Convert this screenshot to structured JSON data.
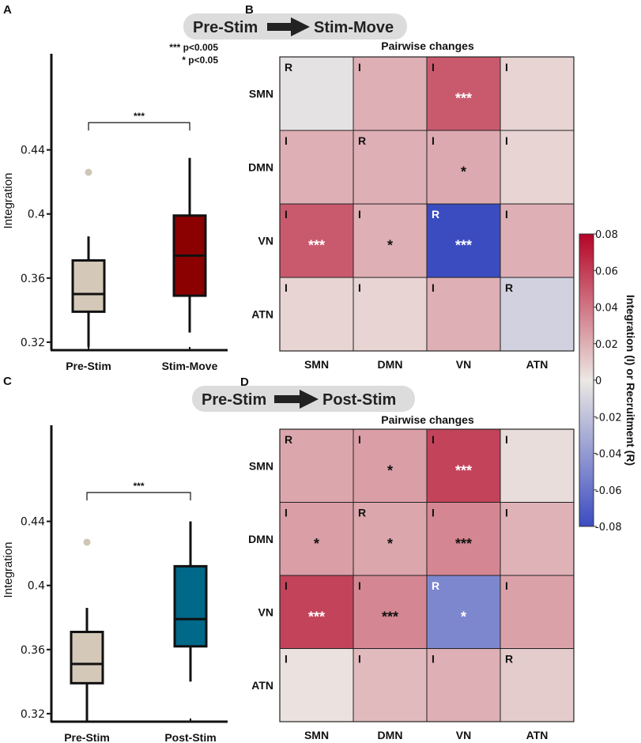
{
  "chart_data": [
    {
      "type": "box",
      "panel": "A",
      "ylabel": "Integration",
      "ylim": [
        0.315,
        0.5
      ],
      "yticks": [
        0.32,
        0.36,
        0.4,
        0.44
      ],
      "ytick_labels": [
        "0.32",
        "0.36",
        "0.4",
        "0.44"
      ],
      "categories": [
        "Pre-Stim",
        "Stim-Move"
      ],
      "boxes": [
        {
          "name": "Pre-Stim",
          "whisker_low": 0.317,
          "q1": 0.339,
          "median": 0.35,
          "q3": 0.371,
          "whisker_high": 0.386,
          "outliers": [
            0.426
          ],
          "color": "#d4c8b8"
        },
        {
          "name": "Stim-Move",
          "whisker_low": 0.326,
          "q1": 0.349,
          "median": 0.374,
          "q3": 0.399,
          "whisker_high": 0.435,
          "outliers": [],
          "color": "#8b0000"
        }
      ],
      "significance": {
        "label": "***",
        "level": 0.457
      },
      "legend": [
        "*** p<0.005",
        "* p<0.05"
      ]
    },
    {
      "type": "box",
      "panel": "C",
      "ylabel": "Integration",
      "ylim": [
        0.315,
        0.5
      ],
      "yticks": [
        0.32,
        0.36,
        0.4,
        0.44
      ],
      "ytick_labels": [
        "0.32",
        "0.36",
        "0.4",
        "0.44"
      ],
      "categories": [
        "Pre-Stim",
        "Post-Stim"
      ],
      "boxes": [
        {
          "name": "Pre-Stim",
          "whisker_low": 0.315,
          "q1": 0.339,
          "median": 0.351,
          "q3": 0.371,
          "whisker_high": 0.386,
          "outliers": [
            0.427
          ],
          "color": "#d4c8b8"
        },
        {
          "name": "Post-Stim",
          "whisker_low": 0.34,
          "q1": 0.362,
          "median": 0.379,
          "q3": 0.412,
          "whisker_high": 0.44,
          "outliers": [],
          "color": "#006888"
        }
      ],
      "significance": {
        "label": "***",
        "level": 0.458
      }
    },
    {
      "type": "heatmap",
      "panel": "B",
      "title": "Pairwise changes",
      "header": {
        "from": "Pre-Stim",
        "to": "Stim-Move"
      },
      "rows": [
        "SMN",
        "DMN",
        "VN",
        "ATN"
      ],
      "cols": [
        "SMN",
        "DMN",
        "VN",
        "ATN"
      ],
      "values": [
        [
          -0.003,
          0.02,
          0.05,
          0.007
        ],
        [
          0.02,
          0.02,
          0.022,
          0.007
        ],
        [
          0.05,
          0.02,
          -0.08,
          0.02
        ],
        [
          0.007,
          0.007,
          0.02,
          -0.012
        ]
      ],
      "tags": [
        [
          "R",
          "I",
          "I",
          "I"
        ],
        [
          "I",
          "R",
          "I",
          "I"
        ],
        [
          "I",
          "I",
          "R",
          "I"
        ],
        [
          "I",
          "I",
          "I",
          "R"
        ]
      ],
      "sig": [
        [
          "",
          "",
          "***",
          ""
        ],
        [
          "",
          "",
          "*",
          ""
        ],
        [
          "***",
          "*",
          "***",
          ""
        ],
        [
          "",
          "",
          "",
          ""
        ]
      ]
    },
    {
      "type": "heatmap",
      "panel": "D",
      "title": "Pairwise changes",
      "header": {
        "from": "Pre-Stim",
        "to": "Post-Stim"
      },
      "rows": [
        "SMN",
        "DMN",
        "VN",
        "ATN"
      ],
      "cols": [
        "SMN",
        "DMN",
        "VN",
        "ATN"
      ],
      "values": [
        [
          0.023,
          0.026,
          0.058,
          0.004
        ],
        [
          0.026,
          0.023,
          0.034,
          0.019
        ],
        [
          0.058,
          0.034,
          -0.05,
          0.025
        ],
        [
          0.002,
          0.016,
          0.02,
          0.01
        ]
      ],
      "tags": [
        [
          "R",
          "I",
          "I",
          "I"
        ],
        [
          "I",
          "R",
          "I",
          "I"
        ],
        [
          "I",
          "I",
          "R",
          "I"
        ],
        [
          "I",
          "I",
          "I",
          "R"
        ]
      ],
      "sig": [
        [
          "",
          "*",
          "***",
          ""
        ],
        [
          "*",
          "*",
          "***",
          ""
        ],
        [
          "***",
          "***",
          "*",
          ""
        ],
        [
          "",
          "",
          "",
          ""
        ]
      ]
    }
  ],
  "colorbar": {
    "label": "Integration (I) or Recruitment (R)",
    "range": [
      -0.08,
      0.08
    ],
    "ticks": [
      0.08,
      0.06,
      0.04,
      0.02,
      0,
      -0.02,
      -0.04,
      -0.06,
      -0.08
    ],
    "tick_labels": [
      "0.08",
      "0.06",
      "0.04",
      "0.02",
      "0",
      "-0.02",
      "-0.04",
      "-0.06",
      "-0.08"
    ],
    "colors": {
      "low": "#3b4cc0",
      "mid": "#ece8e4",
      "high": "#b40426"
    }
  },
  "panel_letters": {
    "a": "A",
    "b": "B",
    "c": "C",
    "d": "D"
  }
}
